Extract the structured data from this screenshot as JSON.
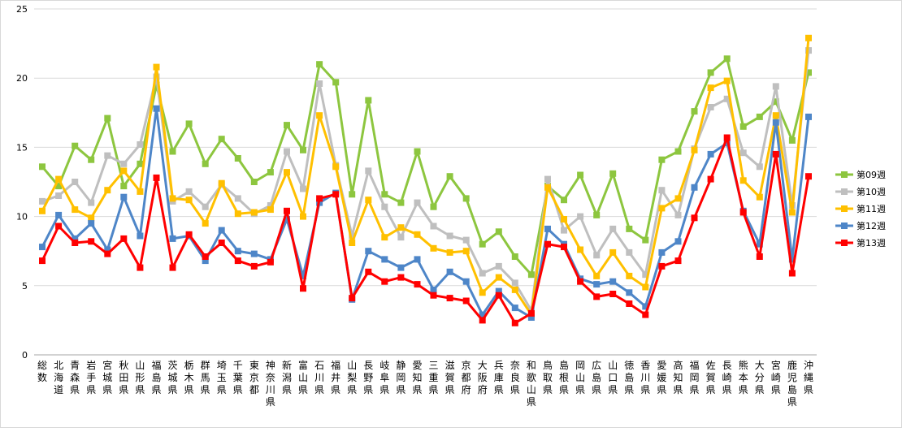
{
  "chart_data": {
    "type": "line",
    "ylim": [
      0,
      25
    ],
    "yticks": [
      "0",
      "5",
      "10",
      "15",
      "20",
      "25"
    ],
    "grid": true,
    "legend_position": "right",
    "categories": [
      "総数",
      "北海道",
      "青森県",
      "岩手県",
      "宮城県",
      "秋田県",
      "山形県",
      "福島県",
      "茨城県",
      "栃木県",
      "群馬県",
      "埼玉県",
      "千葉県",
      "東京都",
      "神奈川県",
      "新潟県",
      "富山県",
      "石川県",
      "福井県",
      "山梨県",
      "長野県",
      "岐阜県",
      "静岡県",
      "愛知県",
      "三重県",
      "滋賀県",
      "京都府",
      "大阪府",
      "兵庫県",
      "奈良県",
      "和歌山県",
      "鳥取県",
      "島根県",
      "岡山県",
      "広島県",
      "山口県",
      "徳島県",
      "香川県",
      "愛媛県",
      "高知県",
      "福岡県",
      "佐賀県",
      "長崎県",
      "熊本県",
      "大分県",
      "宮崎県",
      "鹿児島県",
      "沖縄県"
    ],
    "series": [
      {
        "name": "第09週",
        "color": "#8dc63f",
        "values": [
          13.6,
          12.2,
          15.1,
          14.1,
          17.1,
          12.2,
          13.8,
          19.5,
          14.7,
          16.7,
          13.8,
          15.6,
          14.2,
          12.5,
          13.2,
          16.6,
          14.8,
          21.0,
          19.7,
          11.6,
          18.4,
          11.6,
          11.0,
          14.7,
          10.7,
          12.9,
          11.3,
          8.0,
          8.9,
          7.1,
          5.8,
          12.2,
          11.2,
          13.0,
          10.1,
          13.1,
          9.1,
          8.3,
          14.1,
          14.7,
          17.6,
          20.4,
          21.4,
          16.5,
          17.2,
          18.3,
          15.5,
          20.4
        ]
      },
      {
        "name": "第10週",
        "color": "#bfbfbf",
        "values": [
          11.1,
          11.5,
          12.5,
          11.0,
          14.4,
          13.8,
          15.2,
          20.1,
          11.1,
          11.8,
          10.7,
          12.3,
          11.3,
          10.2,
          10.8,
          14.7,
          12.0,
          19.6,
          13.7,
          8.6,
          13.3,
          10.7,
          8.5,
          11.0,
          9.3,
          8.6,
          8.3,
          5.9,
          6.4,
          5.2,
          3.2,
          12.7,
          9.0,
          10.0,
          7.2,
          9.1,
          7.4,
          5.8,
          11.9,
          10.1,
          14.9,
          17.9,
          18.5,
          14.6,
          13.6,
          19.4,
          10.8,
          22.0
        ]
      },
      {
        "name": "第11週",
        "color": "#ffc000",
        "values": [
          10.4,
          12.7,
          10.5,
          9.9,
          11.9,
          13.3,
          11.8,
          20.8,
          11.3,
          11.2,
          9.5,
          12.4,
          10.2,
          10.3,
          10.5,
          13.2,
          10.0,
          17.3,
          13.6,
          8.1,
          11.2,
          8.5,
          9.2,
          8.7,
          7.7,
          7.4,
          7.5,
          4.5,
          5.6,
          4.7,
          2.9,
          12.1,
          9.8,
          7.6,
          5.7,
          7.4,
          5.7,
          4.9,
          10.6,
          11.3,
          14.8,
          19.3,
          19.8,
          12.6,
          11.4,
          17.3,
          10.3,
          22.9
        ]
      },
      {
        "name": "第12週",
        "color": "#4e86c8",
        "values": [
          7.8,
          10.1,
          8.4,
          9.5,
          7.6,
          11.4,
          8.6,
          17.8,
          8.4,
          8.6,
          6.8,
          9.0,
          7.5,
          7.3,
          6.9,
          9.8,
          5.7,
          11.0,
          11.7,
          4.0,
          7.5,
          6.9,
          6.3,
          6.9,
          4.7,
          6.0,
          5.3,
          2.9,
          4.6,
          3.4,
          2.7,
          9.1,
          8.0,
          5.5,
          5.1,
          5.3,
          4.5,
          3.5,
          7.4,
          8.2,
          12.1,
          14.5,
          15.3,
          10.4,
          8.0,
          16.8,
          6.9,
          17.2
        ]
      },
      {
        "name": "第13週",
        "color": "#ff0000",
        "values": [
          6.8,
          9.3,
          8.1,
          8.2,
          7.3,
          8.4,
          6.3,
          12.8,
          6.3,
          8.7,
          7.1,
          8.1,
          6.8,
          6.4,
          6.7,
          10.4,
          4.8,
          11.3,
          11.6,
          4.1,
          6.0,
          5.3,
          5.6,
          5.1,
          4.3,
          4.1,
          3.9,
          2.5,
          4.3,
          2.3,
          3.0,
          8.0,
          7.8,
          5.3,
          4.2,
          4.4,
          3.7,
          2.9,
          6.4,
          6.8,
          9.9,
          12.7,
          15.7,
          10.3,
          7.1,
          14.5,
          5.9,
          12.9
        ]
      }
    ]
  }
}
